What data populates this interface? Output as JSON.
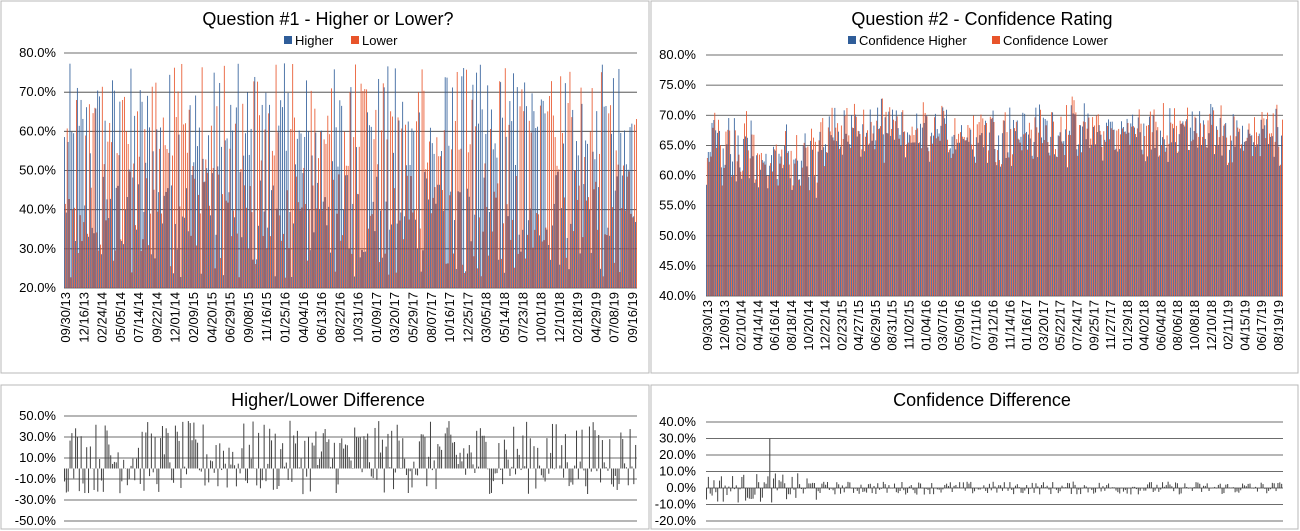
{
  "colors": {
    "higher": "#2f5d99",
    "lower": "#e8542a",
    "diff": "#444444"
  },
  "chart_data": [
    {
      "id": "q1",
      "type": "bar",
      "title": "Question #1 - Higher or Lower?",
      "legend": [
        "Higher",
        "Lower"
      ],
      "legend_position": "top",
      "ylim": [
        0.2,
        0.8
      ],
      "yticks": [
        "80.0%",
        "70.0%",
        "60.0%",
        "50.0%",
        "40.0%",
        "30.0%",
        "20.0%"
      ],
      "ytick_values": [
        0.8,
        0.7,
        0.6,
        0.5,
        0.4,
        0.3,
        0.2
      ],
      "xticks": [
        "09/30/13",
        "12/16/13",
        "02/24/14",
        "05/05/14",
        "07/14/14",
        "09/22/14",
        "12/01/14",
        "02/09/15",
        "04/20/15",
        "06/29/15",
        "09/08/15",
        "11/16/15",
        "01/25/16",
        "04/04/16",
        "06/13/16",
        "08/22/16",
        "10/31/16",
        "01/09/17",
        "03/20/17",
        "05/29/17",
        "08/07/17",
        "10/16/17",
        "12/25/17",
        "03/05/18",
        "05/14/18",
        "07/23/18",
        "10/01/18",
        "12/10/18",
        "02/18/19",
        "04/29/19",
        "07/08/19",
        "09/16/19"
      ],
      "grid": true,
      "n_points": 310,
      "series_names": [
        "Higher",
        "Lower"
      ]
    },
    {
      "id": "q2",
      "type": "bar",
      "title": "Question #2 - Confidence Rating",
      "legend": [
        "Confidence Higher",
        "Confidence Lower"
      ],
      "legend_position": "top",
      "ylim": [
        0.4,
        0.8
      ],
      "yticks": [
        "80.0%",
        "75.0%",
        "70.0%",
        "65.0%",
        "60.0%",
        "55.0%",
        "50.0%",
        "45.0%",
        "40.0%"
      ],
      "ytick_values": [
        0.8,
        0.75,
        0.7,
        0.65,
        0.6,
        0.55,
        0.5,
        0.45,
        0.4
      ],
      "xticks": [
        "09/30/13",
        "12/09/13",
        "02/10/14",
        "04/14/14",
        "06/16/14",
        "08/18/14",
        "10/20/14",
        "12/22/14",
        "02/23/15",
        "04/27/15",
        "06/29/15",
        "08/31/15",
        "11/02/15",
        "01/04/16",
        "03/07/16",
        "05/09/16",
        "07/11/16",
        "09/12/16",
        "11/14/16",
        "01/16/17",
        "03/20/17",
        "05/22/17",
        "07/24/17",
        "09/25/17",
        "11/27/17",
        "01/29/18",
        "04/02/18",
        "06/04/18",
        "08/06/18",
        "10/08/18",
        "12/10/18",
        "02/11/19",
        "04/15/19",
        "06/17/19",
        "08/19/19"
      ],
      "grid": true,
      "n_points": 310,
      "series_names": [
        "Confidence Higher",
        "Confidence Lower"
      ]
    },
    {
      "id": "d1",
      "type": "bar",
      "title": "Higher/Lower Difference",
      "ylim": [
        -0.5,
        0.5
      ],
      "yticks": [
        "50.0%",
        "30.0%",
        "10.0%",
        "-10.0%",
        "-30.0%",
        "-50.0%"
      ],
      "ytick_values": [
        0.5,
        0.3,
        0.1,
        -0.1,
        -0.3,
        -0.5
      ],
      "grid": true,
      "n_points": 310
    },
    {
      "id": "d2",
      "type": "bar",
      "title": "Confidence Difference",
      "ylim": [
        -0.2,
        0.4
      ],
      "yticks": [
        "40.0%",
        "30.0%",
        "20.0%",
        "10.0%",
        "0.0%",
        "-10.0%",
        "-20.0%"
      ],
      "ytick_values": [
        0.4,
        0.3,
        0.2,
        0.1,
        0.0,
        -0.1,
        -0.2
      ],
      "grid": true,
      "n_points": 310
    }
  ]
}
